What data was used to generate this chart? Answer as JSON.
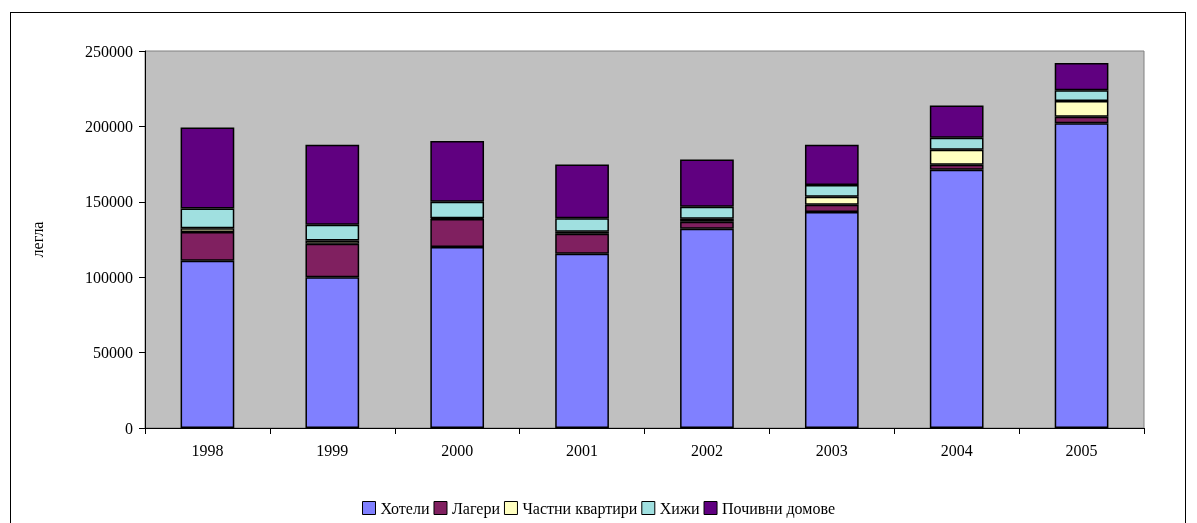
{
  "chart_data": {
    "type": "bar",
    "stacked": true,
    "ylabel": "легла",
    "categories": [
      "1998",
      "1999",
      "2000",
      "2001",
      "2002",
      "2003",
      "2004",
      "2005"
    ],
    "series": [
      {
        "name": "Хотели",
        "color": "#8080ff",
        "values": [
          110900,
          100000,
          120000,
          115600,
          132100,
          143300,
          171200,
          202100
        ]
      },
      {
        "name": "Лагери",
        "color": "#802060",
        "values": [
          19100,
          22100,
          18600,
          13200,
          4600,
          4800,
          3300,
          4300
        ]
      },
      {
        "name": "Частни квартири",
        "color": "#ffffc0",
        "values": [
          2400,
          2300,
          500,
          1400,
          2100,
          5200,
          10000,
          10400
        ]
      },
      {
        "name": "Хижи",
        "color": "#a0e0e0",
        "values": [
          13200,
          10300,
          10900,
          8900,
          7900,
          7900,
          7900,
          7200
        ]
      },
      {
        "name": "Почивни домове",
        "color": "#600080",
        "values": [
          53700,
          53200,
          40300,
          35600,
          31300,
          26700,
          21400,
          18000
        ]
      }
    ],
    "ylim": [
      0,
      250000
    ],
    "yticks": [
      0,
      50000,
      100000,
      150000,
      200000,
      250000
    ],
    "grid": false,
    "legend": "bottom"
  }
}
